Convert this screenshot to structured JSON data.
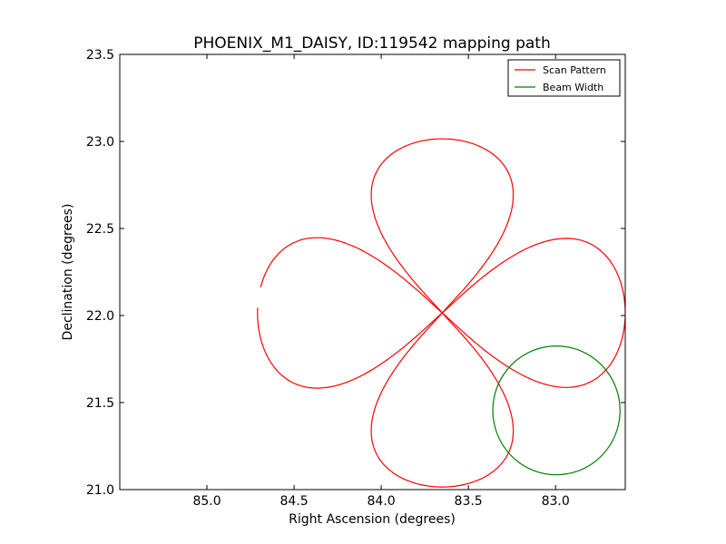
{
  "chart_data": {
    "type": "line",
    "title": "PHOENIX_M1_DAISY, ID:119542 mapping path",
    "xlabel": "Right Ascension (degrees)",
    "ylabel": "Declination (degrees)",
    "xlim": [
      85.5,
      82.6
    ],
    "ylim": [
      21.0,
      23.5
    ],
    "x_inverted": true,
    "xticks": [
      85.0,
      84.5,
      84.0,
      83.5,
      83.0
    ],
    "xtick_labels": [
      "85.0",
      "84.5",
      "84.0",
      "83.5",
      "83.0"
    ],
    "yticks": [
      21.0,
      21.5,
      22.0,
      22.5,
      23.0,
      23.5
    ],
    "ytick_labels": [
      "21.0",
      "21.5",
      "22.0",
      "22.5",
      "23.0",
      "23.5"
    ],
    "grid": false,
    "legend_position": "top-right",
    "series": [
      {
        "name": "Scan Pattern",
        "color": "#ff0000",
        "kind": "daisy",
        "center": [
          83.65,
          22.015
        ],
        "petal_tips": [
          {
            "ra": 83.65,
            "dec": 23.015
          },
          {
            "ra": 82.6,
            "dec": 22.015
          },
          {
            "ra": 83.65,
            "dec": 21.015
          },
          {
            "ra": 84.71,
            "dec": 22.015
          }
        ],
        "petal_half_width_deg": [
          0.29,
          0.28
        ],
        "gap_near": {
          "ra": 84.7,
          "dec": 22.07
        }
      },
      {
        "name": "Beam Width",
        "color": "#008000",
        "kind": "circle",
        "center": [
          82.995,
          21.455
        ],
        "radius_ra_deg": 0.365,
        "radius_dec_deg": 0.37
      }
    ]
  }
}
